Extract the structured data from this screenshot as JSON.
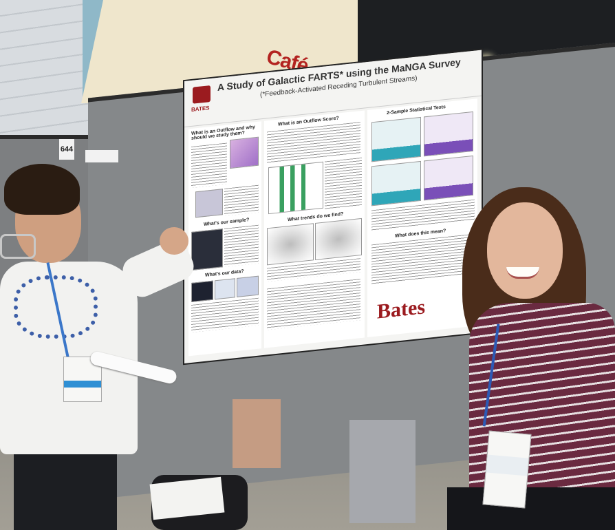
{
  "scene": {
    "cafe_sign": "Café",
    "booth_number": "644",
    "booth_label": ""
  },
  "poster": {
    "title": "A Study of Galactic FARTS* using the MaNGA Survey",
    "subtitle": "(*Feedback-Activated Receding Turbulent Streams)",
    "logo_text": "BATES",
    "footer_logo": "Bates",
    "sections": {
      "s1": "What is an Outflow and why should we study them?",
      "s2": "What is an Outflow Score?",
      "s3": "2-Sample Statistical Tests",
      "s4": "What's our sample?",
      "s5": "What trends do we find?",
      "s6": "What does this mean?",
      "s7": "What's our data?"
    }
  },
  "colors": {
    "bates_red": "#9b1b1f",
    "cafe_red": "#b32320"
  }
}
